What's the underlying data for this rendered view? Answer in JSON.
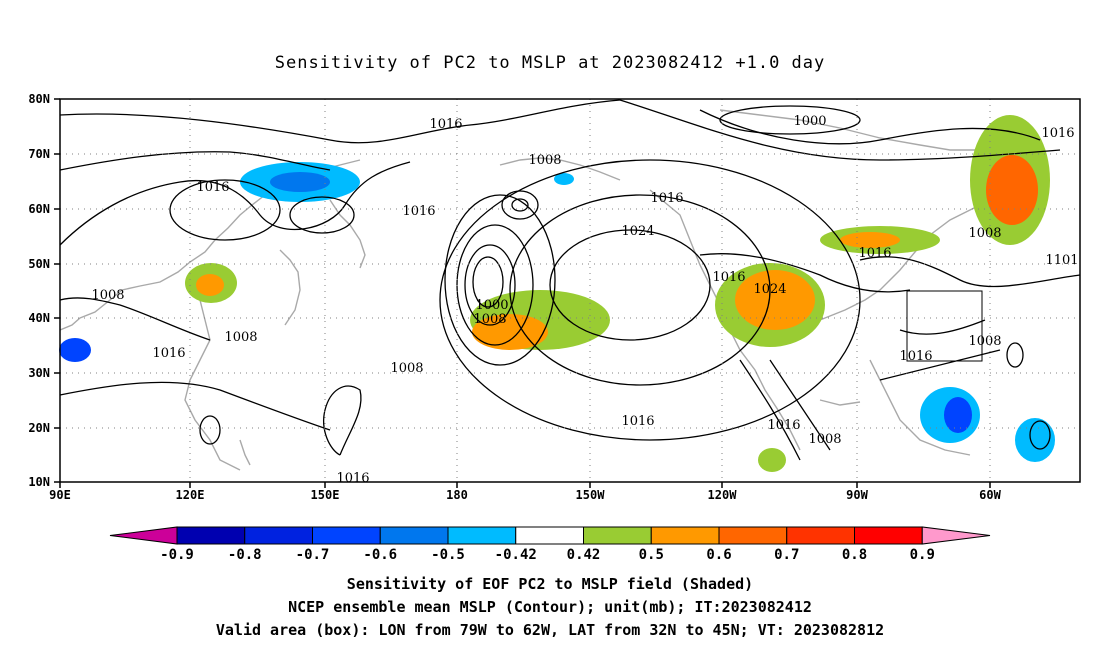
{
  "title": "Sensitivity of PC2 to MSLP at 2023082412 +1.0 day",
  "map": {
    "lon_labels": [
      "90E",
      "120E",
      "150E",
      "180",
      "150W",
      "120W",
      "90W",
      "60W"
    ],
    "lat_labels": [
      "80N",
      "70N",
      "60N",
      "50N",
      "40N",
      "30N",
      "20N",
      "10N"
    ],
    "contour_labels": [
      "1016",
      "1000",
      "1016",
      "1016",
      "1016",
      "1008",
      "1016",
      "1024",
      "1016",
      "1016",
      "1008",
      "1101",
      "1016",
      "1024",
      "1008",
      "1016",
      "1008",
      "1008",
      "1000",
      "1008",
      "1016",
      "1016",
      "1008",
      "1016",
      "1008"
    ],
    "valid_box": {
      "lon_from": "79W",
      "lon_to": "62W",
      "lat_from": "32N",
      "lat_to": "45N"
    }
  },
  "colorbar": {
    "labels": [
      "-0.9",
      "-0.8",
      "-0.7",
      "-0.6",
      "-0.5",
      "-0.42",
      "0.42",
      "0.5",
      "0.6",
      "0.7",
      "0.8",
      "0.9"
    ],
    "colors": [
      "#cc0099",
      "#0000b0",
      "#0022e0",
      "#0044ff",
      "#0077ee",
      "#00bbff",
      "#ffffff",
      "#99cc33",
      "#ff9900",
      "#ff6600",
      "#ff3300",
      "#ff0000",
      "#ff99cc"
    ]
  },
  "caption": {
    "line1": "Sensitivity of EOF PC2 to MSLP field (Shaded)",
    "line2": "NCEP ensemble mean MSLP (Contour); unit(mb); IT:2023082412",
    "line3": "Valid area (box): LON from 79W to 62W, LAT from 32N to 45N; VT: 2023082812"
  }
}
